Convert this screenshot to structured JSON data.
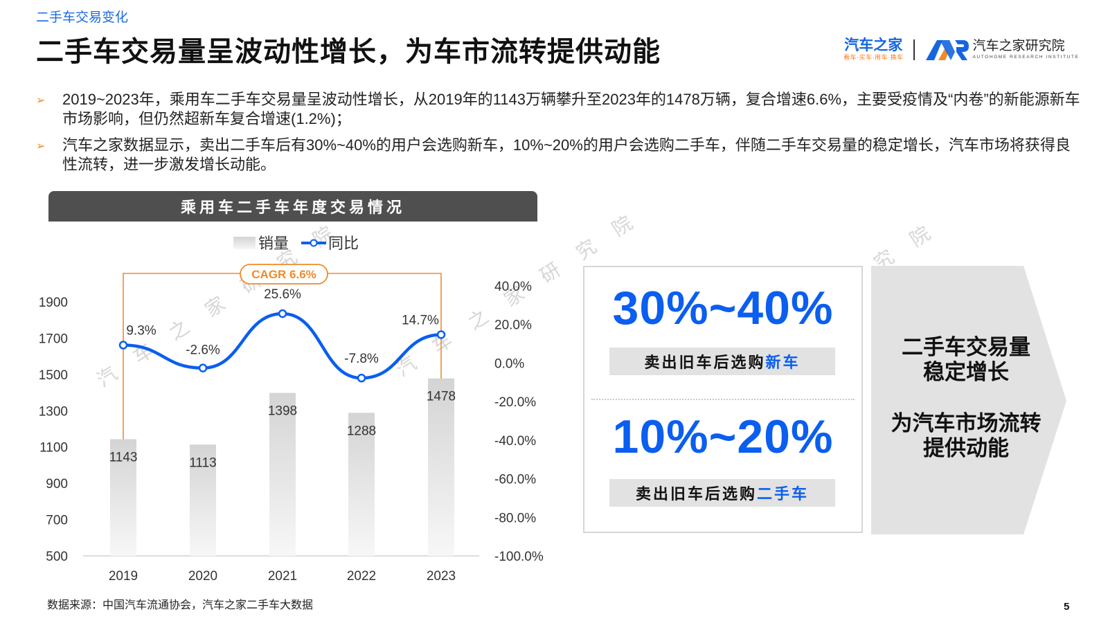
{
  "header": {
    "section_tag": "二手车交易变化",
    "title": "二手车交易量呈波动性增长，为车市流转提供动能"
  },
  "logos": {
    "autohome_main": "汽车之家",
    "autohome_sub": "看车·买车·用车·换车",
    "ar_mark": "AR",
    "institute_name": "汽车之家研究院",
    "institute_sub": "AUTOHOME RESEARCH INSTITUTE"
  },
  "bullets": [
    {
      "icon": "orange-arrow-bullet-icon",
      "text": "2019~2023年，乘用车二手车交易量呈波动性增长，从2019年的1143万辆攀升至2023年的1478万辆，复合增速6.6%，主要受疫情及“内卷”的新能源新车市场影响，但仍然超新车复合增速(1.2%)；"
    },
    {
      "icon": "orange-arrow-bullet-icon",
      "text": "汽车之家数据显示，卖出二手车后有30%~40%的用户会选购新车，10%~20%的用户会选购二手车，伴随二手车交易量的稳定增长，汽车市场将获得良性流转，进一步激发增长动能。"
    }
  ],
  "watermark": {
    "text": "汽车之家研究院",
    "color": "#c9c9c9"
  },
  "chart_data": {
    "type": "bar",
    "title": "乘用车二手车年度交易情况",
    "legend": [
      "销量",
      "同比"
    ],
    "legend_position": "top-center",
    "categories": [
      "2019",
      "2020",
      "2021",
      "2022",
      "2023"
    ],
    "series": [
      {
        "name": "销量",
        "type": "bar",
        "axis": "left",
        "values": [
          1143,
          1113,
          1398,
          1288,
          1478
        ],
        "labels": [
          "1143",
          "1113",
          "1398",
          "1288",
          "1478"
        ]
      },
      {
        "name": "同比",
        "type": "line",
        "smooth": true,
        "axis": "right",
        "values": [
          9.3,
          -2.6,
          25.6,
          -7.8,
          14.7
        ],
        "labels": [
          "9.3%",
          "-2.6%",
          "25.6%",
          "-7.8%",
          "14.7%"
        ]
      }
    ],
    "y_left": {
      "ylim": [
        500,
        1900
      ],
      "ticks": [
        "500",
        "700",
        "900",
        "1100",
        "1300",
        "1500",
        "1700",
        "1900"
      ]
    },
    "y_right": {
      "ylim": [
        -100,
        40
      ],
      "ticks": [
        "40.0%",
        "20.0%",
        "0.0%",
        "-20.0%",
        "-40.0%",
        "-60.0%",
        "-80.0%",
        "-100.0%"
      ]
    },
    "annotation": {
      "text": "CAGR 6.6%",
      "from": "2019",
      "to": "2023"
    },
    "grid": false,
    "colors": {
      "bar_top": "#d4d4d4",
      "bar_bottom": "#f7f7f7",
      "line": "#0a5ef0",
      "annotation": "#f08a2a"
    }
  },
  "stats": [
    {
      "value": "30%~40%",
      "label_prefix": "卖出旧车后选购",
      "label_highlight": "新车"
    },
    {
      "value": "10%~20%",
      "label_prefix": "卖出旧车后选购",
      "label_highlight": "二手车"
    }
  ],
  "conclusion": {
    "line1": "二手车交易量",
    "line2": "稳定增长",
    "line3": "为汽车市场流转",
    "line4": "提供动能"
  },
  "footer": {
    "source": "数据来源：中国汽车流通协会，汽车之家二手车大数据",
    "page_number": "5"
  },
  "colors": {
    "accent_blue": "#0a5ef0",
    "accent_orange": "#f08a2a",
    "header_bar": "#4f4f4f"
  }
}
